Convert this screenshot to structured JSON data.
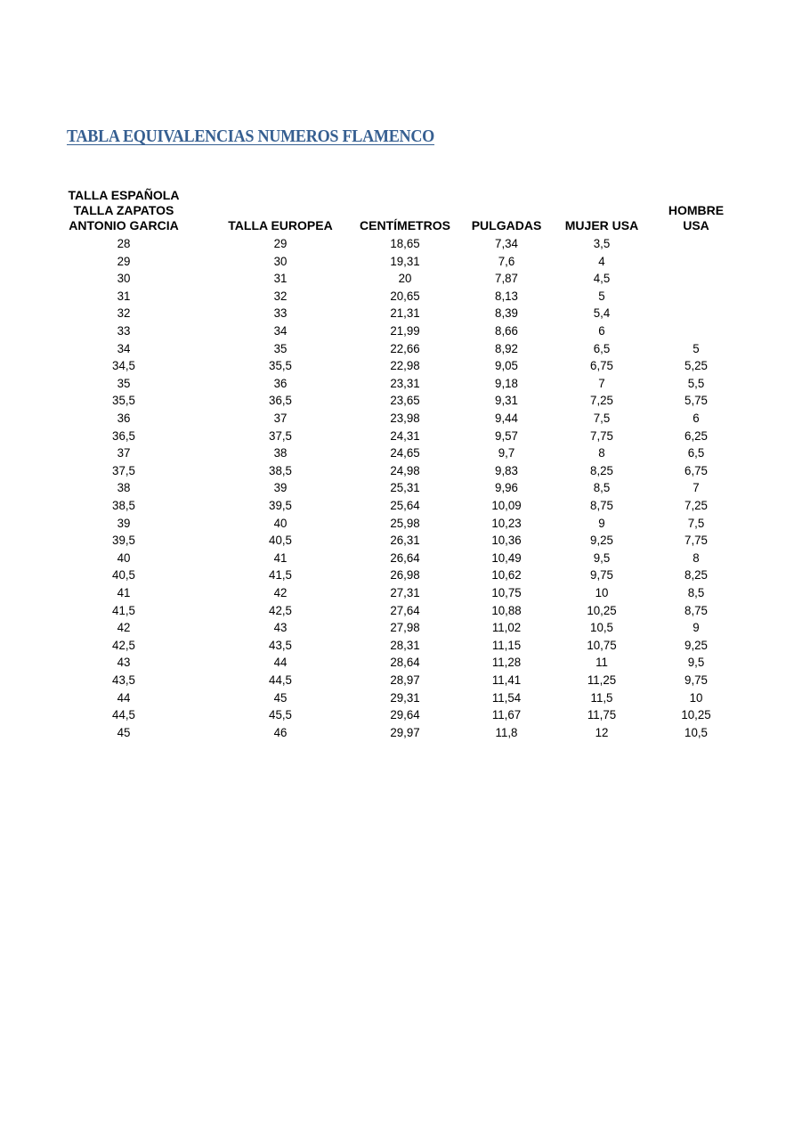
{
  "title": "TABLA EQUIVALENCIAS NUMEROS FLAMENCO",
  "title_color": "#365f91",
  "table": {
    "headers": [
      [
        "TALLA ESPAÑOLA",
        "TALLA ZAPATOS",
        "ANTONIO GARCIA"
      ],
      [
        "TALLA EUROPEA"
      ],
      [
        "CENTÍMETROS"
      ],
      [
        "PULGADAS"
      ],
      [
        "MUJER USA"
      ],
      [
        "HOMBRE",
        "USA"
      ]
    ],
    "rows": [
      [
        "28",
        "29",
        "18,65",
        "7,34",
        "3,5",
        ""
      ],
      [
        "29",
        "30",
        "19,31",
        "7,6",
        "4",
        ""
      ],
      [
        "30",
        "31",
        "20",
        "7,87",
        "4,5",
        ""
      ],
      [
        "31",
        "32",
        "20,65",
        "8,13",
        "5",
        ""
      ],
      [
        "32",
        "33",
        "21,31",
        "8,39",
        "5,4",
        ""
      ],
      [
        "33",
        "34",
        "21,99",
        "8,66",
        "6",
        ""
      ],
      [
        "34",
        "35",
        "22,66",
        "8,92",
        "6,5",
        "5"
      ],
      [
        "34,5",
        "35,5",
        "22,98",
        "9,05",
        "6,75",
        "5,25"
      ],
      [
        "35",
        "36",
        "23,31",
        "9,18",
        "7",
        "5,5"
      ],
      [
        "35,5",
        "36,5",
        "23,65",
        "9,31",
        "7,25",
        "5,75"
      ],
      [
        "36",
        "37",
        "23,98",
        "9,44",
        "7,5",
        "6"
      ],
      [
        "36,5",
        "37,5",
        "24,31",
        "9,57",
        "7,75",
        "6,25"
      ],
      [
        "37",
        "38",
        "24,65",
        "9,7",
        "8",
        "6,5"
      ],
      [
        "37,5",
        "38,5",
        "24,98",
        "9,83",
        "8,25",
        "6,75"
      ],
      [
        "38",
        "39",
        "25,31",
        "9,96",
        "8,5",
        "7"
      ],
      [
        "38,5",
        "39,5",
        "25,64",
        "10,09",
        "8,75",
        "7,25"
      ],
      [
        "39",
        "40",
        "25,98",
        "10,23",
        "9",
        "7,5"
      ],
      [
        "39,5",
        "40,5",
        "26,31",
        "10,36",
        "9,25",
        "7,75"
      ],
      [
        "40",
        "41",
        "26,64",
        "10,49",
        "9,5",
        "8"
      ],
      [
        "40,5",
        "41,5",
        "26,98",
        "10,62",
        "9,75",
        "8,25"
      ],
      [
        "41",
        "42",
        "27,31",
        "10,75",
        "10",
        "8,5"
      ],
      [
        "41,5",
        "42,5",
        "27,64",
        "10,88",
        "10,25",
        "8,75"
      ],
      [
        "42",
        "43",
        "27,98",
        "11,02",
        "10,5",
        "9"
      ],
      [
        "42,5",
        "43,5",
        "28,31",
        "11,15",
        "10,75",
        "9,25"
      ],
      [
        "43",
        "44",
        "28,64",
        "11,28",
        "11",
        "9,5"
      ],
      [
        "43,5",
        "44,5",
        "28,97",
        "11,41",
        "11,25",
        "9,75"
      ],
      [
        "44",
        "45",
        "29,31",
        "11,54",
        "11,5",
        "10"
      ],
      [
        "44,5",
        "45,5",
        "29,64",
        "11,67",
        "11,75",
        "10,25"
      ],
      [
        "45",
        "46",
        "29,97",
        "11,8",
        "12",
        "10,5"
      ]
    ]
  }
}
